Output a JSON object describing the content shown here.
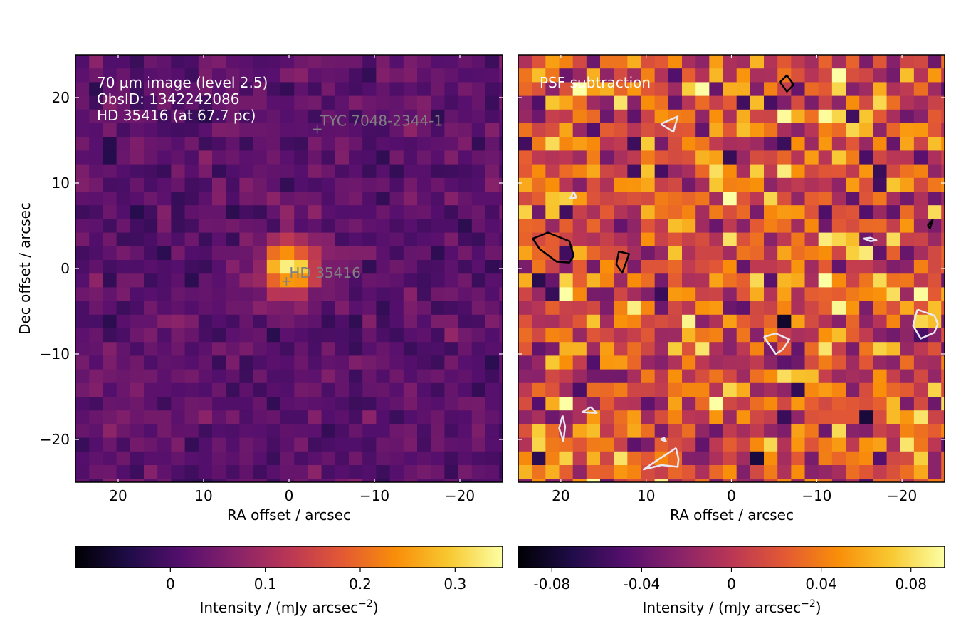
{
  "chart_data": [
    {
      "type": "heatmap",
      "colormap": "inferno",
      "grid": false,
      "xlabel": "RA offset / arcsec",
      "ylabel": "Dec offset / arcsec",
      "xlim": [
        25,
        -25
      ],
      "ylim": [
        -25,
        25
      ],
      "xticks": [
        20,
        10,
        0,
        -10,
        -20
      ],
      "yticks": [
        20,
        10,
        0,
        -10,
        -20
      ],
      "xtick_labels": [
        "20",
        "10",
        "0",
        "−10",
        "−20"
      ],
      "ytick_labels": [
        "20",
        "10",
        "0",
        "−10",
        "−20"
      ],
      "annotations": [
        "70 µm image (level 2.5)",
        "ObsID: 1342242086",
        "HD 35416 (at 67.7 pc)"
      ],
      "markers": [
        {
          "label": "TYC 7048-2344-1",
          "ra": -3.3,
          "dec": 16.3
        },
        {
          "label": "HD 35416",
          "ra": 0.3,
          "dec": -1.5
        }
      ],
      "source": {
        "ra": 0.0,
        "dec": 0.0,
        "peak": 0.33
      },
      "colorbar": {
        "label_main": "Intensity / (mJy arcsec",
        "label_exp": "−2",
        "label_close": ")",
        "vmin": -0.1,
        "vmax": 0.35,
        "ticks": [
          0,
          0.1,
          0.2,
          0.3
        ],
        "tick_labels": [
          "0",
          "0.1",
          "0.2",
          "0.3"
        ]
      }
    },
    {
      "type": "heatmap",
      "colormap": "inferno",
      "grid": false,
      "xlabel": "RA offset / arcsec",
      "xlim": [
        25,
        -25
      ],
      "ylim": [
        -25,
        25
      ],
      "xticks": [
        20,
        10,
        0,
        -10,
        -20
      ],
      "xtick_labels": [
        "20",
        "10",
        "0",
        "−10",
        "−20"
      ],
      "annotations": [
        "PSF subtraction"
      ],
      "contours": {
        "positive": [
          [
            [
              23.3,
              3.5
            ],
            [
              21.5,
              4.2
            ],
            [
              19.0,
              3.2
            ],
            [
              18.5,
              1.5
            ],
            [
              19.0,
              0.7
            ],
            [
              20.5,
              0.8
            ],
            [
              22.5,
              2.3
            ],
            [
              23.3,
              3.5
            ]
          ],
          [
            [
              13.2,
              2.0
            ],
            [
              13.5,
              0.5
            ],
            [
              12.8,
              -0.5
            ],
            [
              12.0,
              1.7
            ],
            [
              13.2,
              2.0
            ]
          ],
          [
            [
              -5.7,
              21.8
            ],
            [
              -6.5,
              22.6
            ],
            [
              -7.3,
              21.5
            ],
            [
              -6.5,
              20.7
            ],
            [
              -5.7,
              21.8
            ]
          ],
          [
            [
              -23.0,
              5.0
            ],
            [
              -23.6,
              5.7
            ],
            [
              -23.3,
              4.7
            ],
            [
              -23.0,
              5.0
            ]
          ]
        ],
        "negative": [
          [
            [
              8.3,
              16.9
            ],
            [
              6.3,
              17.8
            ],
            [
              6.8,
              16.0
            ],
            [
              8.3,
              16.9
            ]
          ],
          [
            [
              18.5,
              9.0
            ],
            [
              18.2,
              8.3
            ],
            [
              18.9,
              8.2
            ],
            [
              18.5,
              9.0
            ]
          ],
          [
            [
              -3.8,
              -8.0
            ],
            [
              -5.2,
              -7.6
            ],
            [
              -6.8,
              -8.3
            ],
            [
              -6.0,
              -9.5
            ],
            [
              -5.2,
              -10.0
            ],
            [
              -3.8,
              -8.0
            ]
          ],
          [
            [
              -21.8,
              -4.8
            ],
            [
              -23.8,
              -5.5
            ],
            [
              -24.2,
              -6.5
            ],
            [
              -23.8,
              -7.5
            ],
            [
              -22.2,
              -8.2
            ],
            [
              -21.3,
              -6.7
            ],
            [
              -21.8,
              -4.8
            ]
          ],
          [
            [
              -15.5,
              3.5
            ],
            [
              -16.3,
              3.2
            ],
            [
              -17.0,
              3.3
            ],
            [
              -16.3,
              3.6
            ],
            [
              -15.5,
              3.5
            ]
          ],
          [
            [
              19.8,
              -17.2
            ],
            [
              20.2,
              -18.7
            ],
            [
              19.7,
              -20.2
            ],
            [
              19.5,
              -18.5
            ],
            [
              19.8,
              -17.2
            ]
          ],
          [
            [
              16.5,
              -16.2
            ],
            [
              17.5,
              -16.8
            ],
            [
              15.8,
              -16.9
            ],
            [
              16.5,
              -16.2
            ]
          ],
          [
            [
              6.5,
              -21.0
            ],
            [
              6.2,
              -22.3
            ],
            [
              6.3,
              -23.2
            ],
            [
              8.2,
              -23.0
            ],
            [
              10.3,
              -23.5
            ],
            [
              8.5,
              -22.3
            ],
            [
              6.5,
              -21.0
            ]
          ],
          [
            [
              8.3,
              -20.0
            ],
            [
              7.9,
              -19.8
            ],
            [
              7.7,
              -20.2
            ],
            [
              8.3,
              -20.0
            ]
          ]
        ]
      },
      "colorbar": {
        "label_main": "Intensity / (mJy arcsec",
        "label_exp": "−2",
        "label_close": ")",
        "vmin": -0.095,
        "vmax": 0.095,
        "ticks": [
          -0.08,
          -0.04,
          0,
          0.04,
          0.08
        ],
        "tick_labels": [
          "-0.08",
          "-0.04",
          "0",
          "0.04",
          "0.08"
        ]
      }
    }
  ]
}
